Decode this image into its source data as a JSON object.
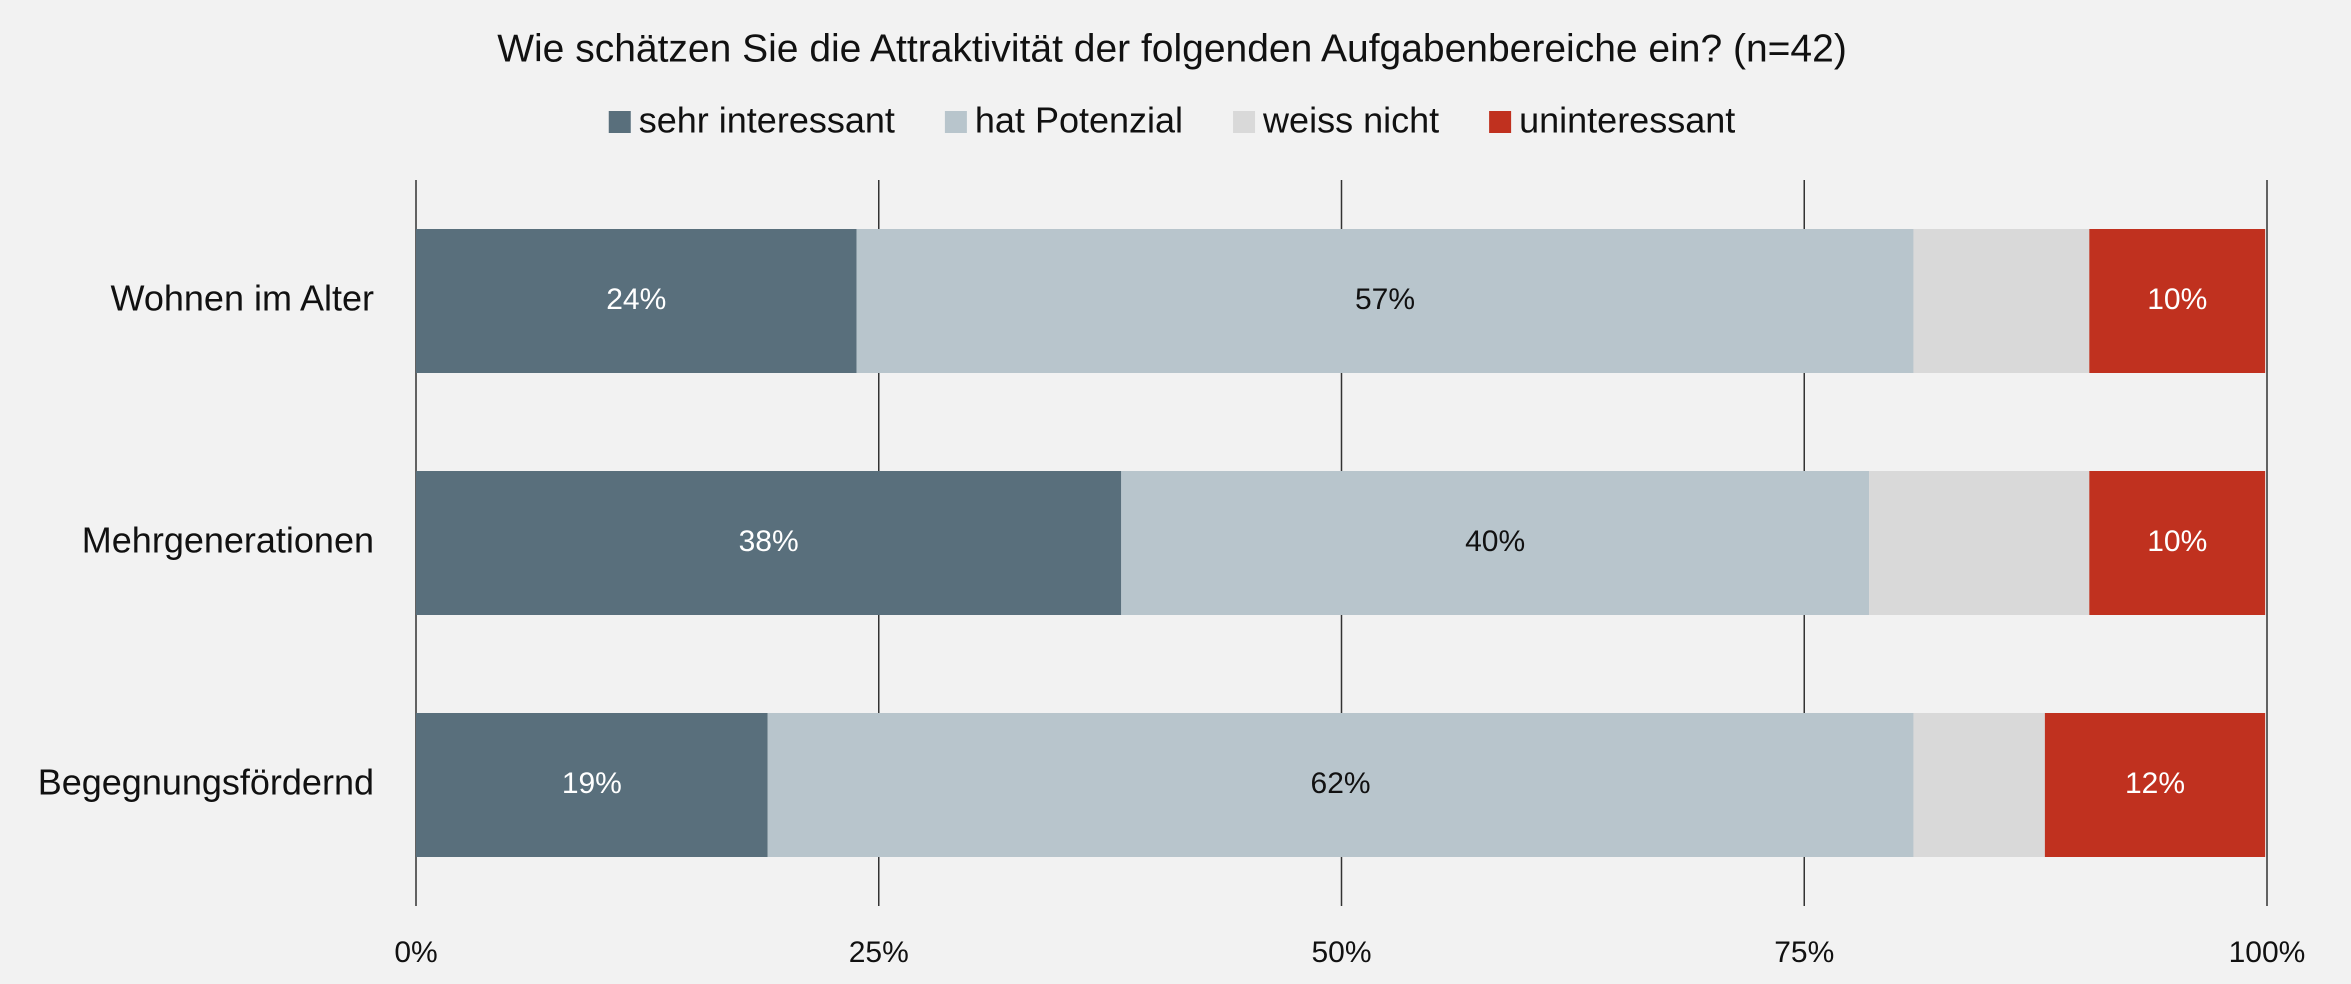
{
  "chart_data": {
    "type": "stacked_barh",
    "title": "Wie schätzen Sie die Attraktivität der folgenden Aufgabenbereiche ein? (n=42)",
    "categories": [
      "Wohnen im Alter",
      "Mehrgenerationen",
      "Begegnungsfördernd"
    ],
    "series": [
      {
        "name": "sehr interessant",
        "color": "#596f7c",
        "values": [
          23.8,
          38.1,
          19.0
        ],
        "value_labels": [
          "24%",
          "38%",
          "19%"
        ]
      },
      {
        "name": "hat Potenzial",
        "color": "#b8c5cc",
        "values": [
          57.1,
          40.4,
          61.9
        ],
        "value_labels": [
          "57%",
          "40%",
          "62%"
        ]
      },
      {
        "name": "weiss nicht",
        "color": "#d9d9d9",
        "values": [
          9.5,
          11.9,
          7.1
        ],
        "value_labels": [
          null,
          null,
          null
        ]
      },
      {
        "name": "uninteressant",
        "color": "#c0311f",
        "values": [
          9.5,
          9.5,
          11.9
        ],
        "value_labels": [
          "10%",
          "10%",
          "12%"
        ]
      }
    ],
    "xlim": [
      0,
      100
    ],
    "xticks": [
      {
        "value": 0,
        "label": "0%"
      },
      {
        "value": 25,
        "label": "25%"
      },
      {
        "value": 50,
        "label": "50%"
      },
      {
        "value": 75,
        "label": "75%"
      },
      {
        "value": 100,
        "label": "100%"
      }
    ],
    "grid": true,
    "legend": "top"
  }
}
